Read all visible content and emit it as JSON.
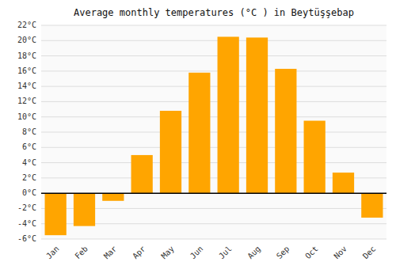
{
  "chart_data": {
    "type": "bar",
    "title": "Average monthly temperatures (°C ) in Beytüşşebap",
    "categories": [
      "Jan",
      "Feb",
      "Mar",
      "Apr",
      "May",
      "Jun",
      "Jul",
      "Aug",
      "Sep",
      "Oct",
      "Nov",
      "Dec"
    ],
    "values": [
      -5.5,
      -4.3,
      -1.0,
      5.0,
      10.8,
      15.8,
      20.5,
      20.4,
      16.3,
      9.5,
      2.7,
      -3.2
    ],
    "color": "#FFA500",
    "ylim": [
      -6,
      22
    ],
    "yticks": [
      {
        "value": -6,
        "label": "-6°C"
      },
      {
        "value": -4,
        "label": "-4°C"
      },
      {
        "value": -2,
        "label": "-2°C"
      },
      {
        "value": 0,
        "label": "0°C"
      },
      {
        "value": 2,
        "label": "2°C"
      },
      {
        "value": 4,
        "label": "4°C"
      },
      {
        "value": 6,
        "label": "6°C"
      },
      {
        "value": 8,
        "label": "8°C"
      },
      {
        "value": 10,
        "label": "10°C"
      },
      {
        "value": 12,
        "label": "12°C"
      },
      {
        "value": 14,
        "label": "14°C"
      },
      {
        "value": 16,
        "label": "16°C"
      },
      {
        "value": 18,
        "label": "18°C"
      },
      {
        "value": 20,
        "label": "20°C"
      },
      {
        "value": 22,
        "label": "22°C"
      }
    ],
    "grid": true
  }
}
